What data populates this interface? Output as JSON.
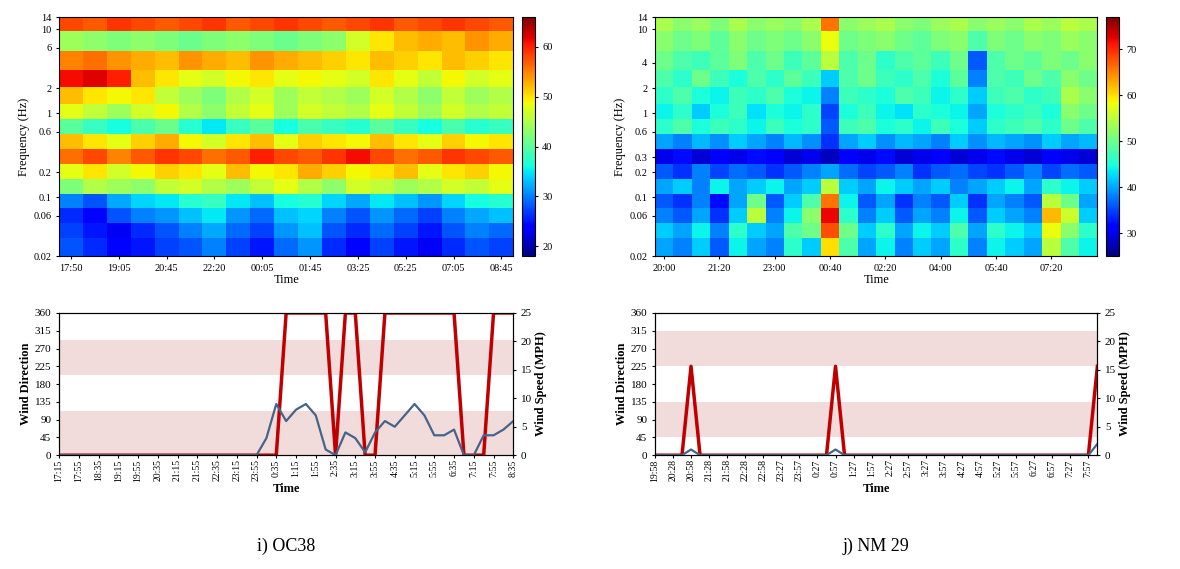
{
  "chart_data": [
    {
      "type": "heatmap",
      "x": [
        "17:50",
        null,
        "19:05",
        null,
        "20:45",
        null,
        "22:20",
        null,
        "00:05",
        null,
        "01:45",
        null,
        "03:25",
        null,
        "05:25",
        null,
        "07:05",
        null,
        "08:45"
      ],
      "y": [
        0.025,
        0.04,
        0.06,
        0.09,
        0.13,
        0.2,
        0.3,
        0.45,
        0.7,
        1.0,
        1.6,
        2.5,
        4,
        7,
        12
      ],
      "cells": [
        [
          28,
          26,
          24,
          25,
          27,
          28,
          30,
          27,
          25,
          29,
          31,
          26,
          24,
          27,
          25,
          23,
          26,
          28,
          27
        ],
        [
          27,
          25,
          23,
          26,
          28,
          30,
          32,
          29,
          27,
          31,
          33,
          28,
          26,
          29,
          27,
          25,
          28,
          30,
          29
        ],
        [
          26,
          24,
          28,
          30,
          31,
          33,
          35,
          31,
          29,
          33,
          34,
          30,
          28,
          31,
          29,
          27,
          30,
          32,
          33
        ],
        [
          30,
          28,
          32,
          34,
          35,
          37,
          38,
          35,
          33,
          36,
          37,
          34,
          32,
          35,
          33,
          31,
          34,
          36,
          37
        ],
        [
          42,
          45,
          44,
          43,
          46,
          47,
          45,
          44,
          46,
          48,
          45,
          43,
          47,
          46,
          44,
          45,
          47,
          46,
          48
        ],
        [
          48,
          50,
          47,
          49,
          51,
          50,
          48,
          52,
          49,
          50,
          53,
          51,
          49,
          50,
          52,
          48,
          50,
          51,
          49
        ],
        [
          56,
          58,
          55,
          57,
          59,
          58,
          56,
          57,
          60,
          58,
          57,
          59,
          61,
          58,
          56,
          57,
          59,
          58,
          57
        ],
        [
          52,
          50,
          48,
          51,
          53,
          49,
          47,
          50,
          52,
          48,
          51,
          50,
          49,
          52,
          50,
          48,
          51,
          49,
          50
        ],
        [
          40,
          38,
          36,
          39,
          41,
          37,
          35,
          38,
          40,
          36,
          39,
          38,
          37,
          40,
          38,
          36,
          39,
          37,
          38
        ],
        [
          48,
          46,
          44,
          47,
          49,
          45,
          43,
          46,
          48,
          44,
          47,
          46,
          45,
          48,
          46,
          44,
          47,
          45,
          46
        ],
        [
          52,
          50,
          49,
          50,
          46,
          44,
          42,
          45,
          47,
          44,
          46,
          45,
          44,
          47,
          45,
          43,
          46,
          44,
          45
        ],
        [
          61,
          62,
          60,
          52,
          50,
          48,
          47,
          49,
          50,
          48,
          49,
          48,
          47,
          50,
          48,
          46,
          49,
          47,
          48
        ],
        [
          55,
          56,
          54,
          53,
          52,
          54,
          53,
          52,
          54,
          53,
          52,
          51,
          50,
          52,
          51,
          50,
          52,
          51,
          50
        ],
        [
          44,
          43,
          42,
          43,
          42,
          41,
          42,
          43,
          42,
          41,
          42,
          43,
          47,
          50,
          52,
          53,
          52,
          54,
          53
        ],
        [
          58,
          57,
          59,
          58,
          57,
          58,
          59,
          57,
          58,
          59,
          58,
          57,
          58,
          59,
          57,
          58,
          59,
          58,
          57
        ]
      ],
      "color_range": [
        18,
        66
      ],
      "color_ticks": [
        20,
        30,
        40,
        50,
        60
      ],
      "log": "y",
      "ylim": [
        0.02,
        14
      ],
      "yticks": [
        0.02,
        0.06,
        0.1,
        0.2,
        0.6,
        1,
        2,
        6,
        10,
        14
      ],
      "x_label": "Time",
      "y_label": "Frequency (Hz)"
    },
    {
      "type": "line",
      "caption": "i) OC38",
      "categories": [
        "17:15",
        null,
        "17:55",
        null,
        "18:35",
        null,
        "19:15",
        null,
        "19:55",
        null,
        "20:35",
        null,
        "21:15",
        null,
        "21:55",
        null,
        "22:35",
        null,
        "23:15",
        null,
        "23:55",
        null,
        "0:35",
        null,
        "1:15",
        null,
        "1:55",
        null,
        "2:35",
        null,
        "3:15",
        null,
        "3:55",
        null,
        "4:35",
        null,
        "5:15",
        null,
        "5:55",
        null,
        "6:35",
        null,
        "7:15",
        null,
        "7:55",
        null,
        "8:35"
      ],
      "series": [
        {
          "name": "Wind Direction",
          "color": "#c00000",
          "values": [
            0,
            0,
            0,
            0,
            0,
            0,
            0,
            0,
            0,
            0,
            0,
            0,
            0,
            0,
            0,
            0,
            0,
            0,
            0,
            0,
            0,
            0,
            0,
            360,
            360,
            360,
            360,
            360,
            0,
            360,
            360,
            0,
            0,
            360,
            360,
            360,
            360,
            360,
            360,
            360,
            360,
            0,
            0,
            0,
            360,
            360,
            360
          ]
        },
        {
          "name": "Wind Speed (MPH)",
          "color": "#46648a",
          "axis": "y2",
          "values": [
            0,
            0,
            0,
            0,
            0,
            0,
            0,
            0,
            0,
            0,
            0,
            0,
            0,
            0,
            0,
            0,
            0,
            0,
            0,
            0,
            0,
            3,
            9,
            6,
            8,
            9,
            7,
            1,
            0,
            4,
            3,
            0.5,
            4,
            6,
            5,
            7,
            9,
            7,
            3.5,
            3.5,
            4.5,
            0,
            0,
            3.5,
            3.5,
            4.5,
            6
          ]
        }
      ],
      "bands": [
        [
          0,
          112
        ],
        [
          202,
          292
        ]
      ],
      "ylim": [
        0,
        360
      ],
      "yticks": [
        0,
        45,
        90,
        135,
        180,
        225,
        270,
        315,
        360
      ],
      "y2lim": [
        0,
        25
      ],
      "y2ticks": [
        0,
        5,
        10,
        15,
        20,
        25
      ],
      "x_label": "Time"
    },
    {
      "type": "heatmap",
      "x": [
        "20:00",
        null,
        null,
        "21:20",
        null,
        null,
        "23:00",
        null,
        null,
        "00:40",
        null,
        null,
        "02:20",
        null,
        null,
        "04:00",
        null,
        null,
        "05:40",
        null,
        null,
        "07:20",
        null,
        null
      ],
      "y": [
        0.025,
        0.04,
        0.06,
        0.09,
        0.13,
        0.2,
        0.3,
        0.45,
        0.7,
        1.0,
        1.6,
        2.5,
        4,
        7,
        12
      ],
      "cells": [
        [
          40,
          38,
          42,
          36,
          44,
          40,
          38,
          46,
          42,
          60,
          48,
          40,
          44,
          38,
          42,
          40,
          46,
          38,
          44,
          42,
          40,
          55,
          48,
          44
        ],
        [
          42,
          40,
          44,
          38,
          46,
          42,
          40,
          48,
          50,
          68,
          50,
          42,
          46,
          40,
          44,
          42,
          48,
          40,
          46,
          44,
          42,
          58,
          52,
          46
        ],
        [
          38,
          36,
          40,
          34,
          42,
          55,
          38,
          44,
          52,
          72,
          46,
          38,
          42,
          36,
          40,
          38,
          44,
          36,
          42,
          40,
          38,
          62,
          56,
          42
        ],
        [
          36,
          34,
          38,
          32,
          40,
          50,
          36,
          42,
          48,
          66,
          44,
          36,
          40,
          34,
          38,
          36,
          42,
          34,
          40,
          38,
          36,
          55,
          50,
          40
        ],
        [
          40,
          42,
          38,
          44,
          40,
          42,
          44,
          40,
          42,
          55,
          42,
          40,
          44,
          42,
          40,
          42,
          38,
          40,
          42,
          44,
          40,
          46,
          44,
          42
        ],
        [
          36,
          34,
          38,
          35,
          37,
          36,
          34,
          36,
          38,
          40,
          37,
          35,
          36,
          38,
          34,
          36,
          37,
          35,
          34,
          36,
          38,
          35,
          37,
          36
        ],
        [
          30,
          32,
          29,
          31,
          30,
          32,
          31,
          29,
          30,
          28,
          31,
          30,
          32,
          29,
          30,
          31,
          29,
          30,
          32,
          30,
          29,
          31,
          30,
          29
        ],
        [
          40,
          38,
          41,
          39,
          42,
          40,
          38,
          41,
          39,
          34,
          40,
          42,
          39,
          41,
          40,
          38,
          42,
          39,
          41,
          40,
          39,
          42,
          40,
          41
        ],
        [
          46,
          48,
          45,
          47,
          46,
          44,
          47,
          45,
          46,
          36,
          47,
          48,
          45,
          46,
          44,
          47,
          45,
          42,
          46,
          47,
          48,
          46,
          50,
          48
        ],
        [
          44,
          46,
          42,
          45,
          47,
          43,
          45,
          44,
          46,
          35,
          45,
          47,
          44,
          43,
          46,
          45,
          44,
          40,
          45,
          46,
          47,
          45,
          52,
          50
        ],
        [
          46,
          48,
          45,
          44,
          47,
          46,
          48,
          45,
          44,
          38,
          47,
          46,
          45,
          48,
          47,
          44,
          46,
          42,
          47,
          48,
          46,
          47,
          54,
          52
        ],
        [
          48,
          46,
          50,
          47,
          45,
          48,
          46,
          49,
          47,
          42,
          48,
          50,
          47,
          46,
          48,
          45,
          49,
          38,
          48,
          47,
          50,
          48,
          52,
          50
        ],
        [
          50,
          48,
          47,
          49,
          51,
          48,
          50,
          47,
          49,
          55,
          48,
          50,
          46,
          48,
          49,
          47,
          50,
          36,
          48,
          50,
          49,
          51,
          50,
          52
        ],
        [
          52,
          50,
          51,
          49,
          52,
          50,
          51,
          50,
          52,
          58,
          50,
          51,
          52,
          50,
          49,
          51,
          52,
          48,
          51,
          50,
          52,
          51,
          53,
          52
        ],
        [
          54,
          52,
          53,
          51,
          54,
          52,
          53,
          52,
          54,
          66,
          52,
          53,
          54,
          52,
          51,
          53,
          54,
          52,
          53,
          52,
          54,
          53,
          55,
          54
        ]
      ],
      "color_range": [
        25,
        77
      ],
      "color_ticks": [
        30,
        40,
        50,
        60,
        70
      ],
      "log": "y",
      "ylim": [
        0.02,
        14
      ],
      "yticks": [
        0.02,
        0.06,
        0.1,
        0.2,
        0.3,
        0.6,
        1,
        2,
        4,
        10,
        14
      ],
      "x_label": "Time",
      "y_label": "Frequency (Hz)"
    },
    {
      "type": "line",
      "caption": "j) NM 29",
      "categories": [
        "19:58",
        null,
        "20:28",
        null,
        "20:58",
        null,
        "21:28",
        null,
        "21:58",
        null,
        "22:28",
        null,
        "22:58",
        null,
        "23:27",
        null,
        "23:57",
        null,
        "0:27",
        null,
        "0:57",
        null,
        "1:27",
        null,
        "1:57",
        null,
        "2:27",
        null,
        "2:57",
        null,
        "3:27",
        null,
        "3:57",
        null,
        "4:27",
        null,
        "4:57",
        null,
        "5:27",
        null,
        "5:57",
        null,
        "6:27",
        null,
        "6:57",
        null,
        "7:27",
        null,
        "7:57",
        null
      ],
      "series": [
        {
          "name": "Wind Direction",
          "color": "#c00000",
          "values": [
            0,
            0,
            0,
            0,
            225,
            0,
            0,
            0,
            0,
            0,
            0,
            0,
            0,
            0,
            0,
            0,
            0,
            0,
            0,
            0,
            225,
            0,
            0,
            0,
            0,
            0,
            0,
            0,
            0,
            0,
            0,
            0,
            0,
            0,
            0,
            0,
            0,
            0,
            0,
            0,
            0,
            0,
            0,
            0,
            0,
            0,
            0,
            0,
            0,
            225
          ]
        },
        {
          "name": "Wind Speed (MPH)",
          "color": "#46648a",
          "axis": "y2",
          "values": [
            0,
            0,
            0,
            0,
            1,
            0,
            0,
            0,
            0,
            0,
            0,
            0,
            0,
            0,
            0,
            0,
            0,
            0,
            0,
            0,
            1,
            0,
            0,
            0,
            0,
            0,
            0,
            0,
            0,
            0,
            0,
            0,
            0,
            0,
            0,
            0,
            0,
            0,
            0,
            0,
            0,
            0,
            0,
            0,
            0,
            0,
            0,
            0,
            0,
            2
          ]
        }
      ],
      "bands": [
        [
          45,
          135
        ],
        [
          225,
          315
        ]
      ],
      "ylim": [
        0,
        360
      ],
      "yticks": [
        0,
        45,
        90,
        135,
        180,
        225,
        270,
        315,
        360
      ],
      "y2lim": [
        0,
        25
      ],
      "y2ticks": [
        0,
        5,
        10,
        15,
        20,
        25
      ],
      "x_label": "Time"
    }
  ]
}
